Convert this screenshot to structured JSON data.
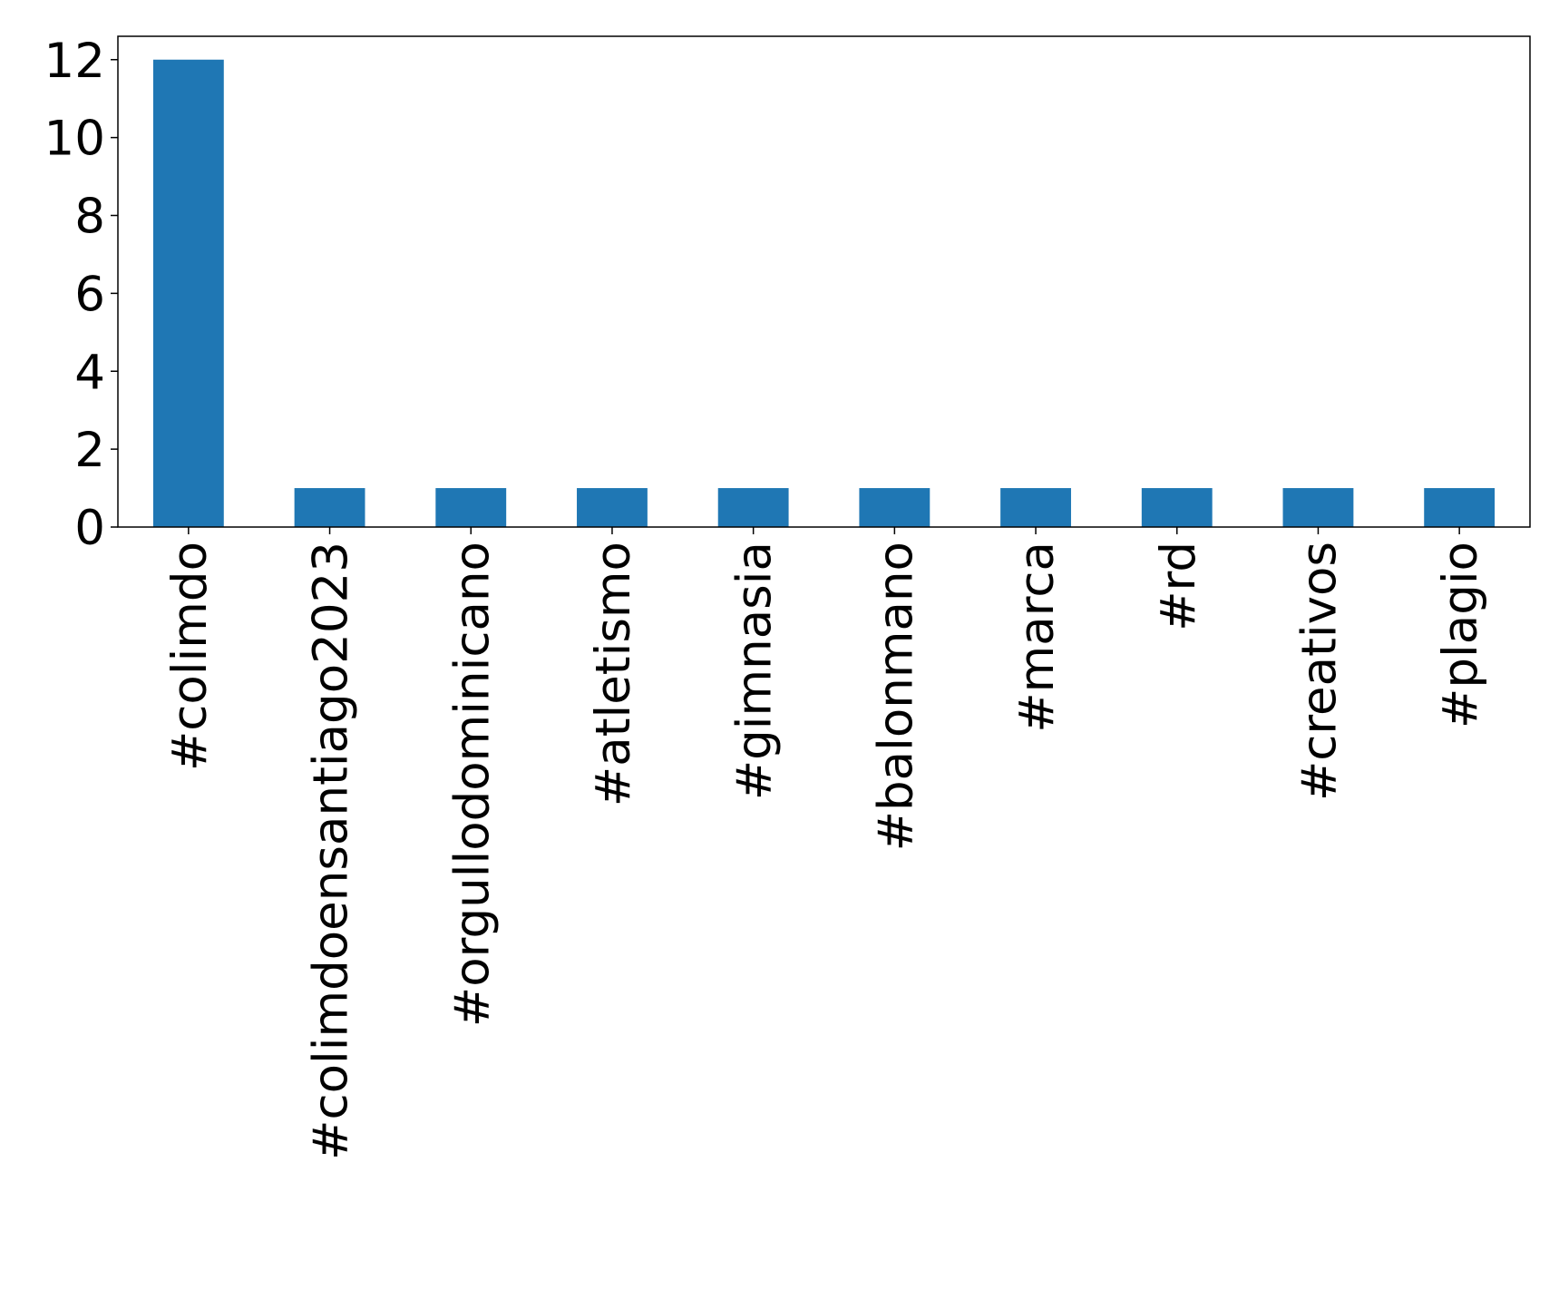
{
  "chart_data": {
    "type": "bar",
    "categories": [
      "#colimdo",
      "#colimdoensantiago2023",
      "#orgullodominicano",
      "#atletismo",
      "#gimnasia",
      "#balonmano",
      "#marca",
      "#rd",
      "#creativos",
      "#plagio"
    ],
    "values": [
      12,
      1,
      1,
      1,
      1,
      1,
      1,
      1,
      1,
      1
    ],
    "color": "#1f77b4",
    "ylim": [
      0,
      12.6
    ],
    "yticks": [
      0,
      2,
      4,
      6,
      8,
      10,
      12
    ],
    "grid": false
  }
}
